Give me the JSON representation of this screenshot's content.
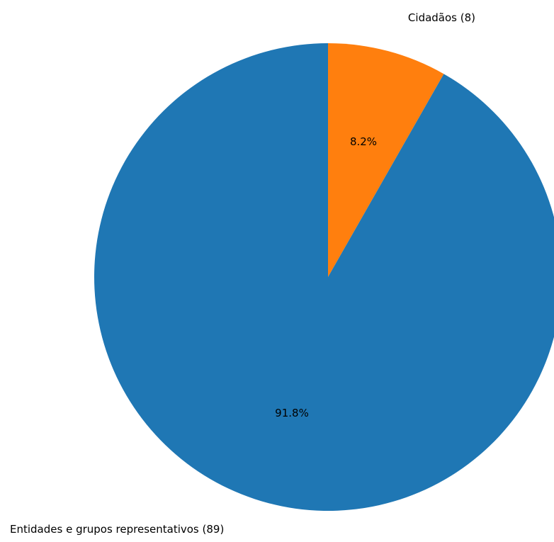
{
  "chart_data": {
    "type": "pie",
    "title": "",
    "start_angle_deg": 90,
    "direction": "clockwise",
    "slices": [
      {
        "label": "Cidadãos (8)",
        "value": 8,
        "percent_label": "8.2%",
        "color": "#ff7f0e"
      },
      {
        "label": "Entidades e grupos representativos (89)",
        "value": 89,
        "percent_label": "91.8%",
        "color": "#1f77b4"
      }
    ]
  }
}
